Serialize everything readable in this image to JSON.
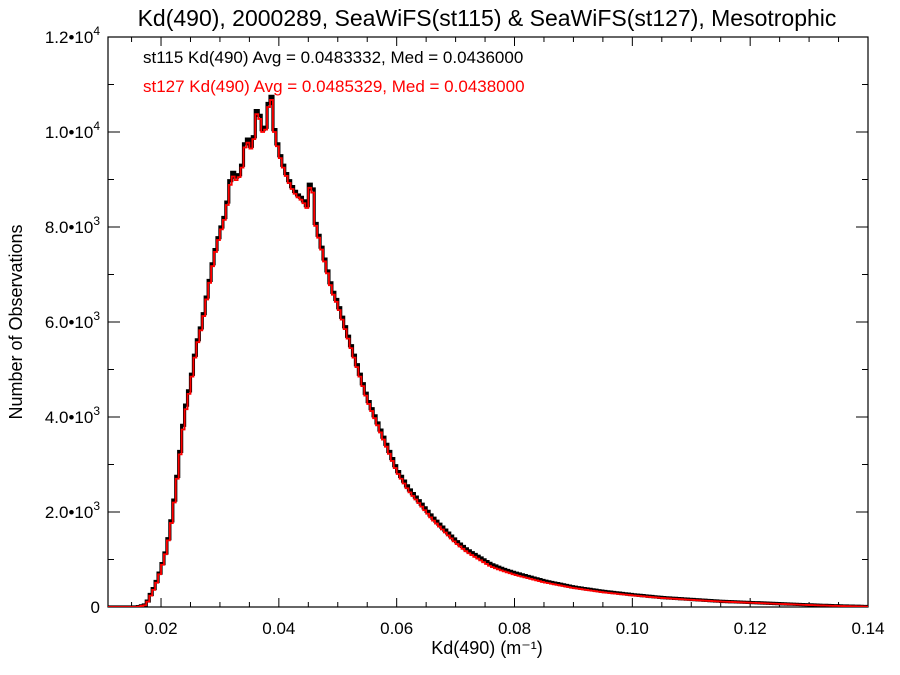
{
  "colors": {
    "series_st115": "#000000",
    "series_st127": "#ff0000",
    "axis": "#000000",
    "background": "#ffffff"
  },
  "chart_data": {
    "type": "line",
    "title": "Kd(490), 2000289, SeaWiFS(st115) & SeaWiFS(st127), Mesotrophic",
    "xlabel": "Kd(490) (m⁻¹)",
    "ylabel": "Number of Observations",
    "xlim": [
      0.011,
      0.14
    ],
    "ylim": [
      0,
      12000
    ],
    "grid": false,
    "legend_position": "top-left",
    "x_ticks": [
      0.02,
      0.04,
      0.06,
      0.08,
      0.1,
      0.12,
      0.14
    ],
    "x_tick_labels": [
      "0.02",
      "0.04",
      "0.06",
      "0.08",
      "0.10",
      "0.12",
      "0.14"
    ],
    "y_ticks": [
      0,
      2000,
      4000,
      6000,
      8000,
      10000,
      12000
    ],
    "y_tick_labels": [
      {
        "mantissa": "0",
        "exp": ""
      },
      {
        "mantissa": "2.0•10",
        "exp": "3"
      },
      {
        "mantissa": "4.0•10",
        "exp": "3"
      },
      {
        "mantissa": "6.0•10",
        "exp": "3"
      },
      {
        "mantissa": "8.0•10",
        "exp": "3"
      },
      {
        "mantissa": "1.0•10",
        "exp": "4"
      },
      {
        "mantissa": "1.2•10",
        "exp": "4"
      }
    ],
    "bin_width": 0.0005,
    "x": [
      0.011,
      0.016,
      0.0175,
      0.018,
      0.019,
      0.02,
      0.021,
      0.022,
      0.023,
      0.024,
      0.025,
      0.026,
      0.027,
      0.028,
      0.029,
      0.03,
      0.031,
      0.032,
      0.033,
      0.034,
      0.0345,
      0.035,
      0.036,
      0.0365,
      0.037,
      0.0375,
      0.038,
      0.0385,
      0.039,
      0.0395,
      0.04,
      0.041,
      0.042,
      0.043,
      0.044,
      0.045,
      0.0455,
      0.046,
      0.047,
      0.048,
      0.049,
      0.05,
      0.051,
      0.052,
      0.053,
      0.054,
      0.055,
      0.056,
      0.057,
      0.058,
      0.059,
      0.06,
      0.062,
      0.064,
      0.066,
      0.068,
      0.07,
      0.072,
      0.074,
      0.076,
      0.078,
      0.08,
      0.085,
      0.09,
      0.095,
      0.1,
      0.105,
      0.11,
      0.115,
      0.12,
      0.125,
      0.13,
      0.135,
      0.14
    ],
    "series": [
      {
        "name": "st115 Kd(490) Avg = 0.0483332, Med = 0.0436000",
        "values": [
          0,
          0,
          50,
          200,
          450,
          800,
          1250,
          2000,
          3000,
          4100,
          4700,
          5500,
          6000,
          6700,
          7400,
          7900,
          8300,
          9200,
          9000,
          9400,
          10100,
          9600,
          10000,
          10900,
          9800,
          10300,
          9900,
          11300,
          10200,
          9900,
          9600,
          9200,
          8900,
          8700,
          8600,
          8400,
          9400,
          8200,
          7700,
          7200,
          6700,
          6400,
          6000,
          5600,
          5200,
          4800,
          4400,
          4100,
          3800,
          3500,
          3200,
          2900,
          2500,
          2200,
          1900,
          1650,
          1400,
          1200,
          1050,
          900,
          800,
          720,
          550,
          420,
          330,
          260,
          200,
          160,
          120,
          95,
          70,
          45,
          25,
          10
        ]
      },
      {
        "name": "st127 Kd(490) Avg = 0.0485329, Med = 0.0438000",
        "values": [
          0,
          0,
          45,
          180,
          420,
          780,
          1220,
          1950,
          2950,
          4000,
          4650,
          5450,
          5950,
          6650,
          7350,
          7850,
          8250,
          9100,
          8950,
          9350,
          10000,
          9550,
          9950,
          10800,
          9750,
          10250,
          9850,
          11200,
          10150,
          9850,
          9550,
          9150,
          8850,
          8650,
          8550,
          8350,
          9300,
          8150,
          7650,
          7150,
          6650,
          6350,
          5950,
          5550,
          5150,
          4750,
          4350,
          4050,
          3750,
          3450,
          3150,
          2850,
          2450,
          2150,
          1850,
          1600,
          1350,
          1150,
          1000,
          850,
          760,
          680,
          520,
          400,
          310,
          245,
          190,
          150,
          115,
          90,
          65,
          42,
          22,
          8
        ]
      }
    ]
  }
}
